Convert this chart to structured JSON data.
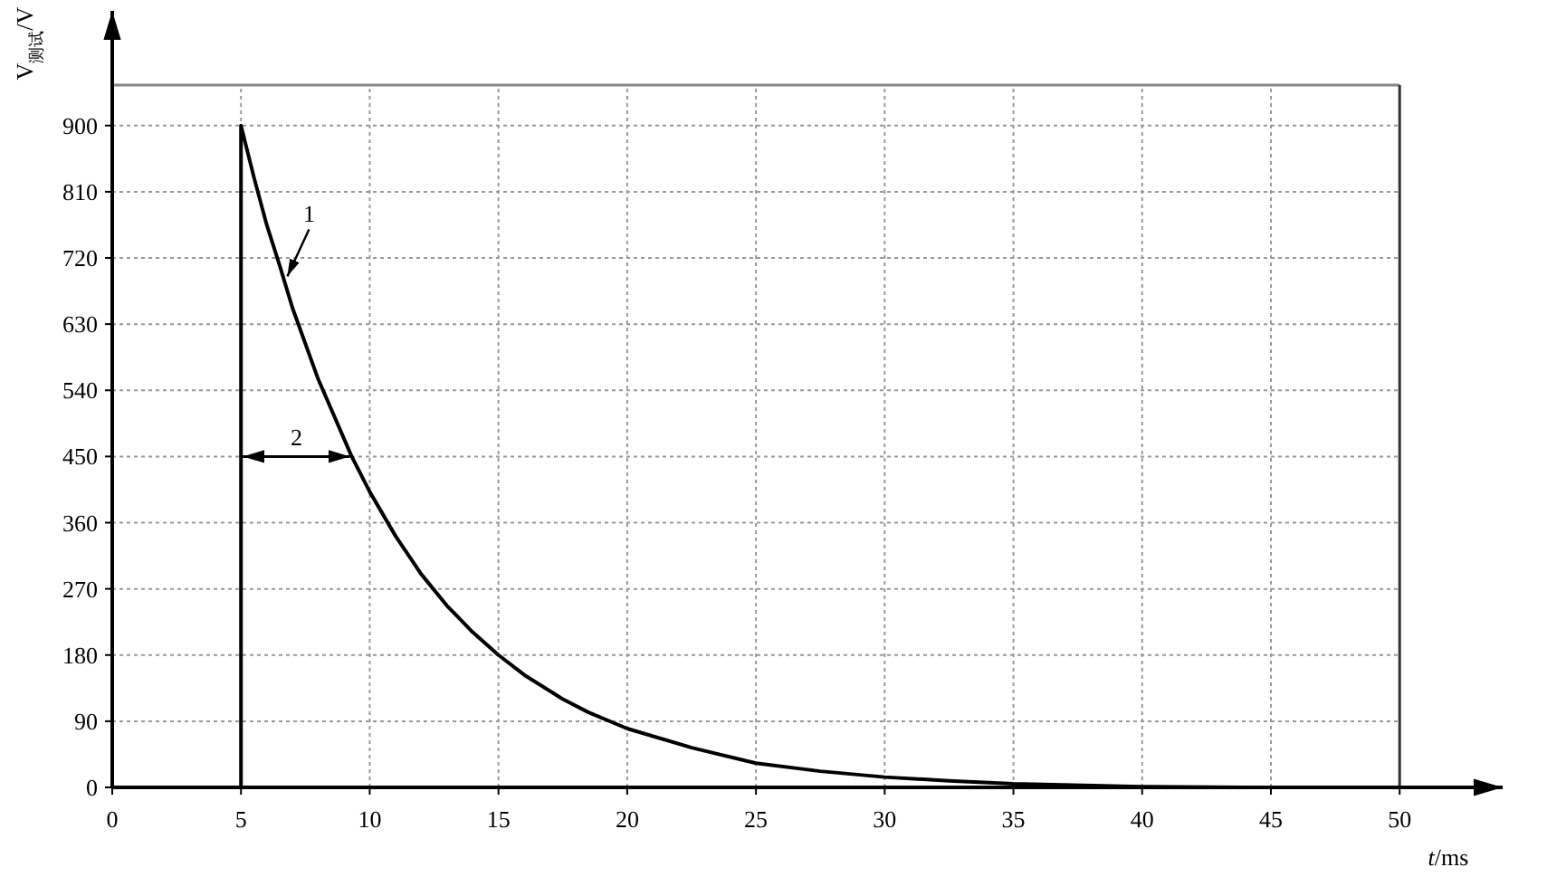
{
  "chart_data": {
    "type": "line",
    "xlabel": "t/ms",
    "ylabel": "V$_{测试}$/V",
    "xlim": [
      0,
      54
    ],
    "ylim": [
      0,
      1056
    ],
    "ref_lines": [
      {
        "axis": "y",
        "value": 955,
        "color": "#888888"
      },
      {
        "axis": "x",
        "value": 50,
        "color": "#333333"
      }
    ],
    "xticks": [
      0,
      5,
      10,
      15,
      20,
      25,
      30,
      35,
      40,
      45,
      50
    ],
    "yticks": [
      0,
      90,
      180,
      270,
      360,
      450,
      540,
      630,
      720,
      810,
      900
    ],
    "grid": true,
    "marker": "none",
    "line_style": "solid",
    "series": [
      {
        "color": "#000000",
        "x": [
          5,
          5,
          5.5,
          6,
          6.5,
          7,
          8,
          9.3,
          10,
          11,
          12,
          13,
          14,
          15,
          16,
          17.5,
          18.5,
          20,
          22.5,
          25,
          27.5,
          30,
          32.5,
          35,
          40,
          44
        ],
        "values": [
          0,
          900,
          830,
          765,
          710,
          652,
          555,
          450,
          402,
          342,
          290,
          247,
          211,
          180,
          153,
          120,
          102,
          80,
          54,
          33,
          22,
          14,
          9,
          5,
          1,
          0
        ]
      }
    ],
    "annotations": [
      {
        "text": "1",
        "x": 6.8,
        "y": 690
      },
      "2"
    ]
  }
}
